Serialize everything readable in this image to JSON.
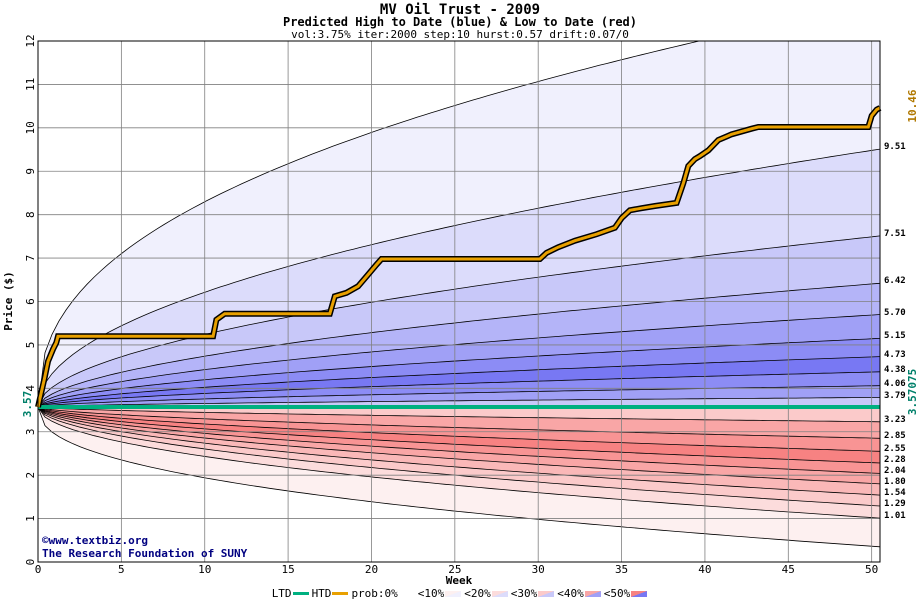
{
  "chart_data": {
    "type": "area",
    "title": "MV Oil Trust - 2009",
    "subtitle": "Predicted High to Date (blue) &  Low to Date (red)",
    "params": "vol:3.75% iter:2000 step:10 hurst:0.57 drift:0.07/0",
    "xlabel": "Week",
    "ylabel": "Price ($)",
    "xlim": [
      0,
      50.5
    ],
    "ylim": [
      0,
      12
    ],
    "x_ticks": [
      "0",
      "5",
      "10",
      "15",
      "20",
      "25",
      "30",
      "35",
      "40",
      "45",
      "50"
    ],
    "y_ticks": [
      "0",
      "1",
      "2",
      "3",
      "4",
      "5",
      "6",
      "7",
      "8",
      "9",
      "10",
      "11",
      "12"
    ],
    "grid": true,
    "start_price_label": "3.57",
    "ltd_value_label": "3.57075",
    "htd_value_label": "10.46",
    "ltd_value": 3.57075,
    "htd_final": 10.46,
    "high_band_end_labels": [
      "9.51",
      "7.51",
      "6.42",
      "5.70",
      "5.15",
      "4.73",
      "4.38",
      "4.06",
      "3.79"
    ],
    "high_band_end_values": [
      9.51,
      7.51,
      6.42,
      5.7,
      5.15,
      4.73,
      4.38,
      4.06,
      3.79
    ],
    "high_outer_end": 12.9,
    "low_band_end_labels": [
      "3.23",
      "2.85",
      "2.55",
      "2.28",
      "2.04",
      "1.80",
      "1.54",
      "1.29",
      "1.01"
    ],
    "low_band_end_values": [
      3.23,
      2.85,
      2.55,
      2.28,
      2.04,
      1.8,
      1.54,
      1.29,
      1.01
    ],
    "low_outer_end": 0.35,
    "high_band_fills": [
      "#f0f0fd",
      "#dcdcfb",
      "#c8c8f9",
      "#b4b4f8",
      "#a0a0f6",
      "#8c8cf5",
      "#7878f3",
      "#8c8cf5",
      "#a0a0f6",
      "#c8c8f9"
    ],
    "low_band_fills": [
      "#fdf0f0",
      "#fcdcdc",
      "#fbcaca",
      "#fab8b8",
      "#f9a6a6",
      "#f89494",
      "#f78282",
      "#f89494",
      "#f9a6a6",
      "#fbcaca"
    ],
    "htd_series": {
      "name": "HTD",
      "x": [
        0,
        0.4,
        0.6,
        0.9,
        1.1,
        1.2,
        10.5,
        10.7,
        11.2,
        17.5,
        17.8,
        18.5,
        19.2,
        19.8,
        20.3,
        20.6,
        30.1,
        30.5,
        31.2,
        32.2,
        33.5,
        34.6,
        35.0,
        35.5,
        36.2,
        37.0,
        38.3,
        38.7,
        39.0,
        39.4,
        39.7,
        40.2,
        40.8,
        41.3,
        41.6,
        42.8,
        43.2,
        49.8,
        50.0,
        50.3,
        50.5
      ],
      "y": [
        3.57,
        4.25,
        4.62,
        4.9,
        5.05,
        5.2,
        5.2,
        5.58,
        5.72,
        5.72,
        6.12,
        6.2,
        6.35,
        6.62,
        6.85,
        6.98,
        6.98,
        7.12,
        7.25,
        7.4,
        7.55,
        7.7,
        7.92,
        8.1,
        8.15,
        8.2,
        8.27,
        8.72,
        9.12,
        9.28,
        9.35,
        9.48,
        9.72,
        9.8,
        9.85,
        9.98,
        10.02,
        10.02,
        10.28,
        10.42,
        10.46
      ]
    },
    "ltd_series": {
      "name": "LTD",
      "x": [
        0,
        50.5
      ],
      "y": [
        3.57075,
        3.57075
      ]
    }
  },
  "credits": {
    "line1": "©www.textbiz.org",
    "line2": "The Research Foundation of SUNY"
  },
  "legend": {
    "ltd": "LTD",
    "htd": "HTD",
    "prob": "prob:0%",
    "p10": "<10%",
    "p20": "<20%",
    "p30": "<30%",
    "p40": "<40%",
    "p50": "<50%",
    "colors": {
      "ltd": "#00b080",
      "htd": "#e8a000",
      "p0": [
        "#ffffff",
        "#ffffff"
      ],
      "p10": [
        "#fdf0f0",
        "#f0f0fd"
      ],
      "p20": [
        "#fcdcdc",
        "#dcdcfb"
      ],
      "p30": [
        "#fbcaca",
        "#c8c8f9"
      ],
      "p40": [
        "#f9a6a6",
        "#a0a0f6"
      ],
      "p50": [
        "#f78282",
        "#7878f3"
      ]
    }
  }
}
